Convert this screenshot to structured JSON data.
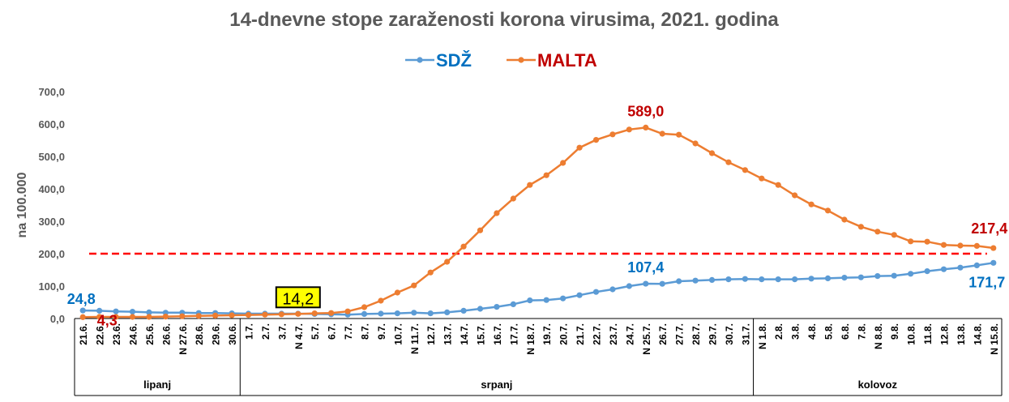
{
  "chart_data": {
    "type": "line",
    "title": "14-dnevne stope zaraženosti korona virusima, 2021. godina",
    "ylabel": "na 100.000",
    "xlabel": "",
    "ylim": [
      0,
      700
    ],
    "yticks": [
      "0,0",
      "100,0",
      "200,0",
      "300,0",
      "400,0",
      "500,0",
      "600,0",
      "700,0"
    ],
    "ytick_values": [
      0,
      100,
      200,
      300,
      400,
      500,
      600,
      700
    ],
    "grid": false,
    "legend": "top-center",
    "categories": [
      "21.6.",
      "22.6.",
      "23.6.",
      "24.6.",
      "25.6.",
      "26.6.",
      "N 27.6.",
      "28.6.",
      "29.6.",
      "30.6.",
      "1.7.",
      "2.7.",
      "3.7.",
      "N 4.7.",
      "5.7.",
      "6.7.",
      "7.7.",
      "8.7.",
      "9.7.",
      "10.7.",
      "N 11.7.",
      "12.7.",
      "13.7.",
      "14.7.",
      "15.7.",
      "16.7.",
      "17.7.",
      "N 18.7.",
      "19.7.",
      "20.7.",
      "21.7.",
      "22.7.",
      "23.7.",
      "24.7.",
      "N 25.7.",
      "26.7.",
      "27.7.",
      "28.7.",
      "29.7.",
      "30.7.",
      "31.7.",
      "N 1.8.",
      "2.8.",
      "3.8.",
      "4.8.",
      "5.8.",
      "6.8.",
      "7.8.",
      "N 8.8.",
      "9.8.",
      "10.8.",
      "11.8.",
      "12.8.",
      "13.8.",
      "14.8.",
      "N 15.8."
    ],
    "months": [
      {
        "label": "lipanj",
        "count": 10
      },
      {
        "label": "srpanj",
        "count": 31
      },
      {
        "label": "kolovoz",
        "count": 15
      }
    ],
    "series": [
      {
        "name": "SDŽ",
        "line_color": "#5B9BD5",
        "label_color": "#0070C0",
        "values": [
          24.8,
          24,
          22,
          21,
          19,
          18,
          18,
          17,
          17,
          16,
          15,
          15,
          15,
          15,
          14,
          13,
          12,
          14,
          15,
          16,
          18,
          16,
          19,
          24,
          30,
          36,
          44,
          56,
          57,
          62,
          72,
          82,
          90,
          100,
          107.4,
          107,
          115,
          117,
          119,
          121,
          122,
          121,
          121,
          121,
          123,
          124,
          126,
          127,
          131,
          132,
          138,
          146,
          152,
          157,
          164,
          171.7
        ]
      },
      {
        "name": "MALTA",
        "line_color": "#ED7D31",
        "label_color": "#C00000",
        "values": [
          4.3,
          5,
          5,
          5,
          5,
          6,
          7,
          8,
          9,
          10,
          11,
          12,
          13,
          14.2,
          16,
          17,
          22,
          35,
          55,
          80,
          102,
          142,
          175,
          222,
          272,
          325,
          370,
          412,
          442,
          480,
          527,
          551,
          568,
          583,
          589,
          570,
          567,
          540,
          510,
          482,
          458,
          432,
          412,
          380,
          352,
          333,
          305,
          283,
          268,
          258,
          238,
          237,
          227,
          225,
          224,
          217.4
        ]
      }
    ],
    "threshold": {
      "value": 200,
      "color": "#FF0000",
      "style": "dashed"
    },
    "annotations": [
      {
        "series": "SDŽ",
        "category": "21.6.",
        "text": "24,8"
      },
      {
        "series": "MALTA",
        "category": "21.6.",
        "text": "4,3"
      },
      {
        "series": "MALTA",
        "category": "N 4.7.",
        "text": "14,2",
        "highlight": "#FFFF00"
      },
      {
        "series": "MALTA",
        "category": "N 25.7.",
        "text": "589,0"
      },
      {
        "series": "SDŽ",
        "category": "N 25.7.",
        "text": "107,4"
      },
      {
        "series": "MALTA",
        "category": "N 15.8.",
        "text": "217,4"
      },
      {
        "series": "SDŽ",
        "category": "N 15.8.",
        "text": "171,7"
      }
    ]
  }
}
